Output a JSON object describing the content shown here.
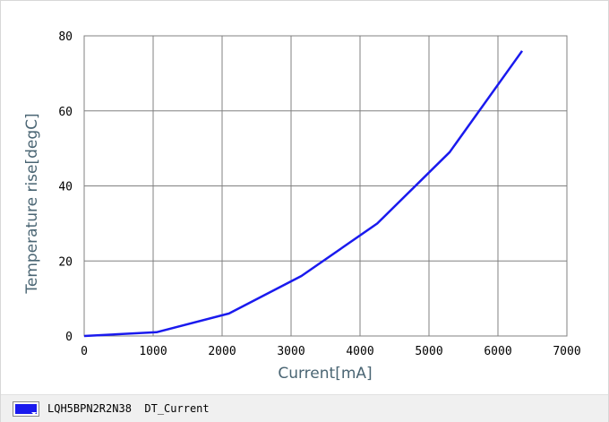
{
  "chart_data": {
    "type": "line",
    "xlabel": "Current[mA]",
    "ylabel": "Temperature rise[degC]",
    "xlim": [
      0,
      7000
    ],
    "ylim": [
      0,
      80
    ],
    "x_ticks": [
      0,
      1000,
      2000,
      3000,
      4000,
      5000,
      6000,
      7000
    ],
    "y_ticks": [
      0,
      20,
      40,
      60,
      80
    ],
    "grid": true,
    "legend_position": "bottom",
    "series": [
      {
        "name": "LQH5BPN2R2N38  DT_Current",
        "color": "#1a1aee",
        "x": [
          0,
          1050,
          2100,
          3150,
          4250,
          5300,
          6350
        ],
        "y": [
          0,
          1,
          6,
          16,
          30,
          49,
          76
        ]
      }
    ]
  },
  "legend": {
    "label": "LQH5BPN2R2N38  DT_Current",
    "swatch_color": "#1a1aee"
  }
}
